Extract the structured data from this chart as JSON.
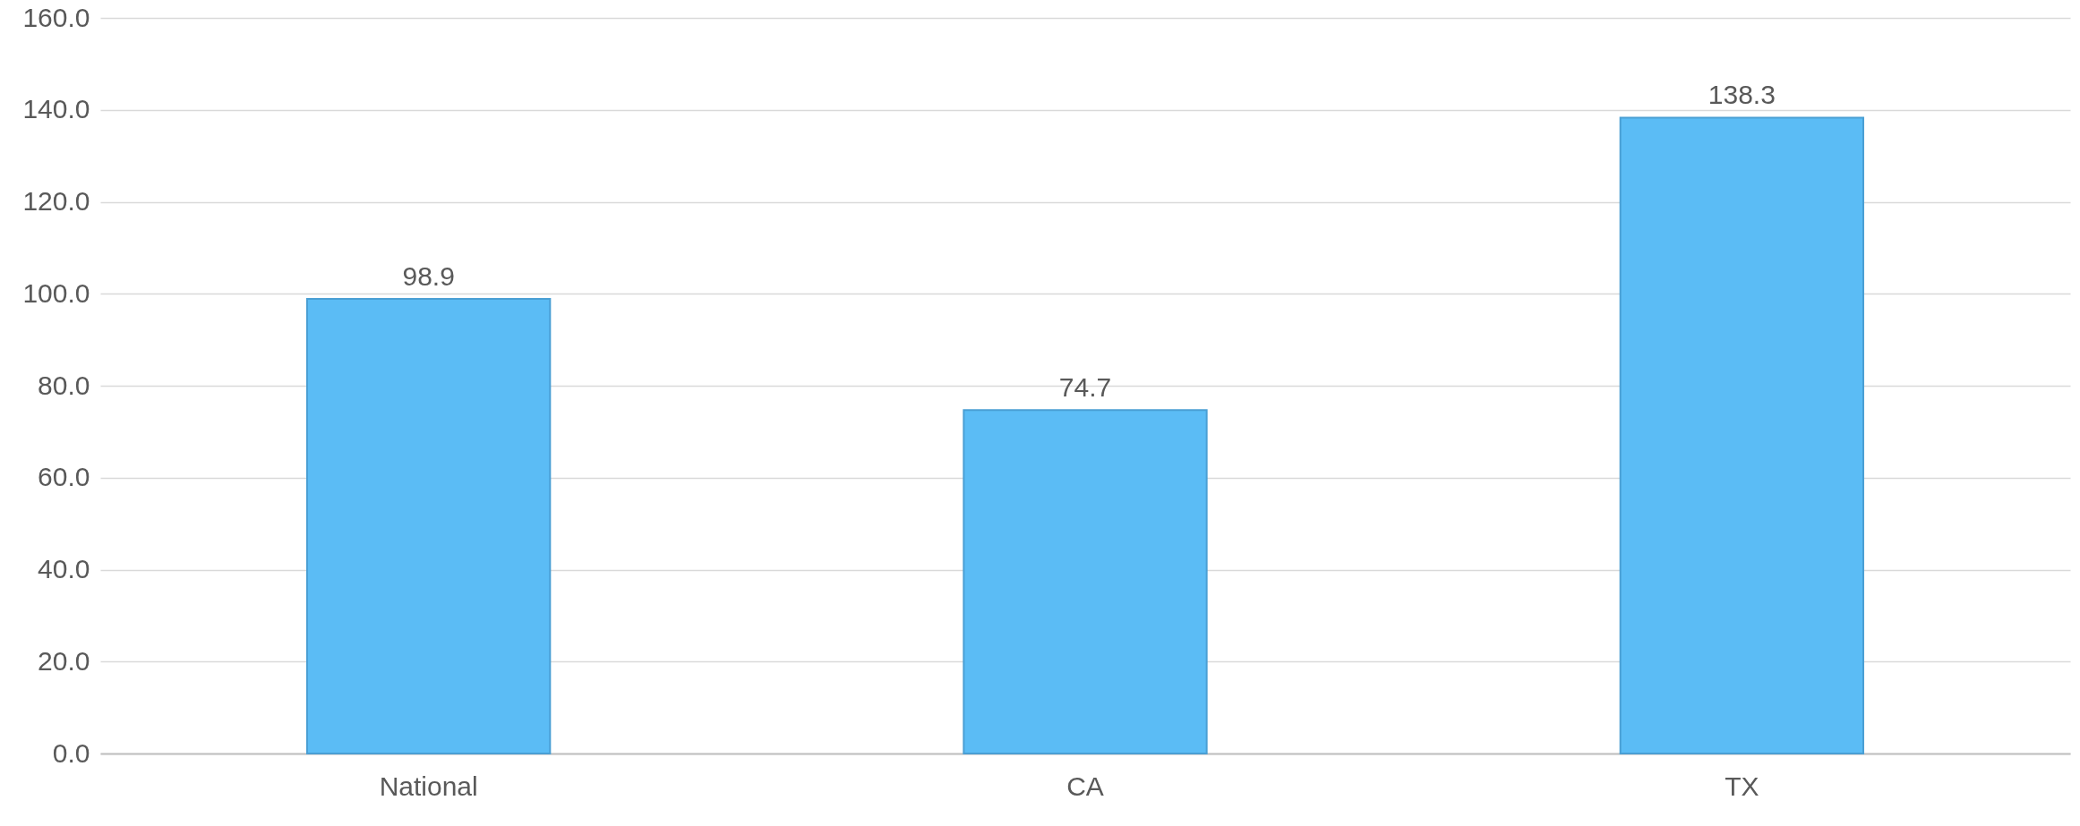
{
  "chart_data": {
    "type": "bar",
    "categories": [
      "National",
      "CA",
      "TX"
    ],
    "values": [
      98.9,
      74.7,
      138.3
    ],
    "color": "#5bbcf5",
    "ylim": [
      0,
      160
    ],
    "yticks": [
      {
        "value": 0,
        "label": "0.0"
      },
      {
        "value": 20,
        "label": "20.0"
      },
      {
        "value": 40,
        "label": "40.0"
      },
      {
        "value": 60,
        "label": "60.0"
      },
      {
        "value": 80,
        "label": "80.0"
      },
      {
        "value": 100,
        "label": "100.0"
      },
      {
        "value": 120,
        "label": "120.0"
      },
      {
        "value": 140,
        "label": "140.0"
      },
      {
        "value": 160,
        "label": "160.0"
      }
    ],
    "grid": "y",
    "data_labels": true
  }
}
